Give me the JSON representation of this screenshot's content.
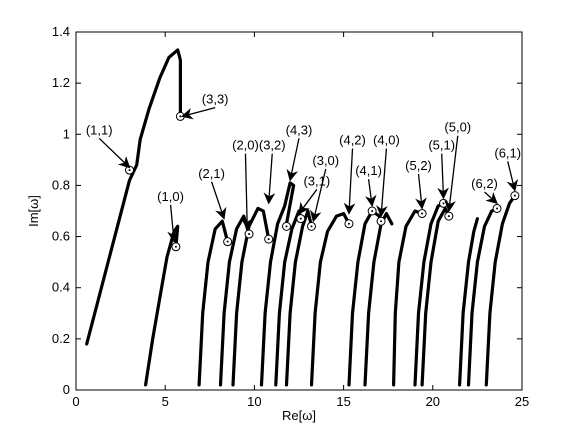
{
  "chart_data": {
    "type": "line",
    "xlabel": "Re[ω]",
    "ylabel": "Im[ω]",
    "xlim": [
      0,
      25
    ],
    "ylim": [
      0,
      1.4
    ],
    "xticks": [
      0,
      5,
      10,
      15,
      20,
      25
    ],
    "yticks": [
      0,
      0.2,
      0.4,
      0.6,
      0.8,
      1,
      1.2,
      1.4
    ],
    "ytick_labels": [
      "0",
      "0.2",
      "0.4",
      "0.6",
      "0.8",
      "1",
      "1.2",
      "1.4"
    ],
    "grid": false,
    "line_color": "#000000",
    "series": [
      {
        "points": [
          [
            0.6,
            0.18
          ],
          [
            1.2,
            0.34
          ],
          [
            1.8,
            0.5
          ],
          [
            2.4,
            0.66
          ],
          [
            3.0,
            0.82
          ],
          [
            3.4,
            0.88
          ],
          [
            3.6,
            0.98
          ],
          [
            4.1,
            1.1
          ],
          [
            4.7,
            1.22
          ],
          [
            5.2,
            1.3
          ],
          [
            5.7,
            1.33
          ],
          [
            5.85,
            1.29
          ],
          [
            5.85,
            1.07
          ]
        ]
      },
      {
        "points": [
          [
            3.9,
            0.02
          ],
          [
            4.3,
            0.2
          ],
          [
            4.7,
            0.36
          ],
          [
            5.1,
            0.52
          ],
          [
            5.5,
            0.62
          ],
          [
            5.7,
            0.64
          ],
          [
            5.6,
            0.56
          ]
        ]
      },
      {
        "points": [
          [
            6.9,
            0.02
          ],
          [
            7.1,
            0.3
          ],
          [
            7.4,
            0.5
          ],
          [
            7.8,
            0.63
          ],
          [
            8.2,
            0.66
          ],
          [
            8.5,
            0.58
          ]
        ]
      },
      {
        "points": [
          [
            8.1,
            0.02
          ],
          [
            8.3,
            0.3
          ],
          [
            8.6,
            0.5
          ],
          [
            9.0,
            0.63
          ],
          [
            9.4,
            0.68
          ],
          [
            9.7,
            0.61
          ]
        ]
      },
      {
        "points": [
          [
            8.8,
            0.02
          ],
          [
            9.0,
            0.3
          ],
          [
            9.3,
            0.5
          ],
          [
            9.7,
            0.64
          ],
          [
            10.2,
            0.71
          ],
          [
            10.5,
            0.7
          ],
          [
            10.8,
            0.59
          ]
        ]
      },
      {
        "points": [
          [
            10.4,
            0.02
          ],
          [
            10.6,
            0.3
          ],
          [
            10.9,
            0.5
          ],
          [
            11.3,
            0.65
          ],
          [
            11.7,
            0.72
          ],
          [
            12.0,
            0.81
          ],
          [
            12.2,
            0.8
          ],
          [
            11.8,
            0.65
          ]
        ]
      },
      {
        "points": [
          [
            11.2,
            0.02
          ],
          [
            11.4,
            0.3
          ],
          [
            11.7,
            0.5
          ],
          [
            12.1,
            0.63
          ],
          [
            12.5,
            0.7
          ],
          [
            12.6,
            0.67
          ]
        ]
      },
      {
        "points": [
          [
            11.8,
            0.02
          ],
          [
            12.0,
            0.3
          ],
          [
            12.3,
            0.5
          ],
          [
            12.7,
            0.64
          ],
          [
            13.0,
            0.7
          ],
          [
            13.2,
            0.64
          ]
        ]
      },
      {
        "points": [
          [
            13.2,
            0.02
          ],
          [
            13.4,
            0.3
          ],
          [
            13.7,
            0.5
          ],
          [
            14.1,
            0.62
          ],
          [
            14.6,
            0.68
          ],
          [
            15.0,
            0.69
          ],
          [
            15.3,
            0.65
          ]
        ]
      },
      {
        "points": [
          [
            15.3,
            0.02
          ],
          [
            15.5,
            0.3
          ],
          [
            15.8,
            0.5
          ],
          [
            16.2,
            0.65
          ],
          [
            16.6,
            0.7
          ],
          [
            17.0,
            0.68
          ],
          [
            17.1,
            0.66
          ]
        ]
      },
      {
        "points": [
          [
            16.2,
            0.02
          ],
          [
            16.4,
            0.3
          ],
          [
            16.7,
            0.5
          ],
          [
            17.1,
            0.65
          ],
          [
            17.4,
            0.69
          ],
          [
            17.7,
            0.65
          ]
        ]
      },
      {
        "points": [
          [
            17.8,
            0.02
          ],
          [
            17.9,
            0.3
          ],
          [
            18.1,
            0.5
          ],
          [
            18.5,
            0.64
          ],
          [
            19.0,
            0.7
          ],
          [
            19.4,
            0.69
          ]
        ]
      },
      {
        "points": [
          [
            19.0,
            0.02
          ],
          [
            19.2,
            0.3
          ],
          [
            19.5,
            0.5
          ],
          [
            19.9,
            0.65
          ],
          [
            20.3,
            0.72
          ],
          [
            20.6,
            0.73
          ]
        ]
      },
      {
        "points": [
          [
            19.4,
            0.02
          ],
          [
            19.6,
            0.3
          ],
          [
            19.9,
            0.5
          ],
          [
            20.3,
            0.66
          ],
          [
            20.7,
            0.71
          ],
          [
            20.9,
            0.68
          ]
        ]
      },
      {
        "points": [
          [
            21.5,
            0.02
          ],
          [
            21.7,
            0.3
          ],
          [
            22.0,
            0.5
          ],
          [
            22.3,
            0.62
          ],
          [
            22.5,
            0.67
          ]
        ]
      },
      {
        "points": [
          [
            22.0,
            0.02
          ],
          [
            22.2,
            0.3
          ],
          [
            22.5,
            0.5
          ],
          [
            22.9,
            0.64
          ],
          [
            23.3,
            0.7
          ],
          [
            23.6,
            0.71
          ]
        ]
      },
      {
        "points": [
          [
            23.0,
            0.02
          ],
          [
            23.2,
            0.3
          ],
          [
            23.5,
            0.5
          ],
          [
            23.9,
            0.65
          ],
          [
            24.3,
            0.73
          ],
          [
            24.6,
            0.76
          ]
        ]
      }
    ],
    "markers": [
      {
        "x": 5.85,
        "y": 1.07
      },
      {
        "x": 3.0,
        "y": 0.86
      },
      {
        "x": 5.6,
        "y": 0.56
      },
      {
        "x": 8.5,
        "y": 0.58
      },
      {
        "x": 9.7,
        "y": 0.61
      },
      {
        "x": 10.8,
        "y": 0.59
      },
      {
        "x": 11.8,
        "y": 0.64
      },
      {
        "x": 12.6,
        "y": 0.67
      },
      {
        "x": 13.2,
        "y": 0.64
      },
      {
        "x": 15.3,
        "y": 0.65
      },
      {
        "x": 16.6,
        "y": 0.7
      },
      {
        "x": 17.1,
        "y": 0.66
      },
      {
        "x": 19.4,
        "y": 0.69
      },
      {
        "x": 20.6,
        "y": 0.73
      },
      {
        "x": 20.9,
        "y": 0.68
      },
      {
        "x": 23.6,
        "y": 0.71
      },
      {
        "x": 24.6,
        "y": 0.76
      }
    ],
    "annotations": [
      {
        "text": "(3,3)",
        "tx": 7.8,
        "ty": 1.12,
        "ax": 5.95,
        "ay": 1.07
      },
      {
        "text": "(1,1)",
        "tx": 1.3,
        "ty": 1.0,
        "ax": 3.0,
        "ay": 0.87
      },
      {
        "text": "(1,0)",
        "tx": 5.3,
        "ty": 0.74,
        "ax": 5.5,
        "ay": 0.58
      },
      {
        "text": "(2,1)",
        "tx": 7.6,
        "ty": 0.83,
        "ax": 8.3,
        "ay": 0.67
      },
      {
        "text": "(2,0)",
        "tx": 9.5,
        "ty": 0.94,
        "ax": 9.6,
        "ay": 0.63
      },
      {
        "text": "(3,2)",
        "tx": 11.0,
        "ty": 0.94,
        "ax": 10.8,
        "ay": 0.73
      },
      {
        "text": "(4,3)",
        "tx": 12.5,
        "ty": 1.0,
        "ax": 12.0,
        "ay": 0.82
      },
      {
        "text": "(3,1)",
        "tx": 13.5,
        "ty": 0.8,
        "ax": 12.5,
        "ay": 0.69
      },
      {
        "text": "(3,0)",
        "tx": 14.0,
        "ty": 0.88,
        "ax": 13.3,
        "ay": 0.66
      },
      {
        "text": "(4,2)",
        "tx": 15.5,
        "ty": 0.96,
        "ax": 15.3,
        "ay": 0.69
      },
      {
        "text": "(4,1)",
        "tx": 16.4,
        "ty": 0.84,
        "ax": 16.6,
        "ay": 0.72
      },
      {
        "text": "(4,0)",
        "tx": 17.4,
        "ty": 0.96,
        "ax": 17.1,
        "ay": 0.68
      },
      {
        "text": "(5,2)",
        "tx": 19.2,
        "ty": 0.86,
        "ax": 19.4,
        "ay": 0.71
      },
      {
        "text": "(5,1)",
        "tx": 20.5,
        "ty": 0.94,
        "ax": 20.6,
        "ay": 0.75
      },
      {
        "text": "(5,0)",
        "tx": 21.4,
        "ty": 1.01,
        "ax": 20.9,
        "ay": 0.7
      },
      {
        "text": "(6,2)",
        "tx": 22.9,
        "ty": 0.79,
        "ax": 23.6,
        "ay": 0.73
      },
      {
        "text": "(6,1)",
        "tx": 24.2,
        "ty": 0.91,
        "ax": 24.6,
        "ay": 0.78
      }
    ]
  }
}
